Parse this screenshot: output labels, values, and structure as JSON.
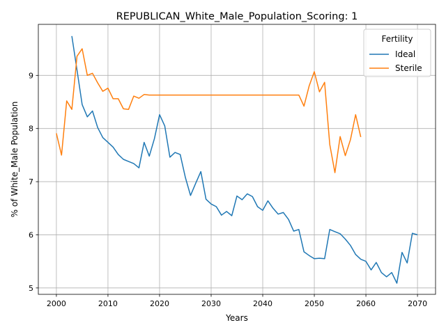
{
  "chart_data": {
    "type": "line",
    "title": "REPUBLICAN_White_Male_Population_Scoring: 1",
    "xlabel": "Years",
    "ylabel": "% of White_Male Population",
    "xlim": [
      1996.5,
      2073.5
    ],
    "ylim": [
      4.88,
      9.96
    ],
    "xticks": [
      2000,
      2010,
      2020,
      2030,
      2040,
      2050,
      2060,
      2070
    ],
    "yticks": [
      5,
      6,
      7,
      8,
      9
    ],
    "grid": true,
    "legend": {
      "title": "Fertility",
      "position": "top-right"
    },
    "series": [
      {
        "name": "Ideal",
        "color": "#1f77b4",
        "x": [
          2003,
          2004,
          2005,
          2006,
          2007,
          2008,
          2009,
          2010,
          2011,
          2012,
          2013,
          2014,
          2015,
          2016,
          2017,
          2018,
          2019,
          2020,
          2021,
          2022,
          2023,
          2024,
          2025,
          2026,
          2027,
          2028,
          2029,
          2030,
          2031,
          2032,
          2033,
          2034,
          2035,
          2036,
          2037,
          2038,
          2039,
          2040,
          2041,
          2042,
          2043,
          2044,
          2045,
          2046,
          2047,
          2048,
          2049,
          2050,
          2051,
          2052,
          2053,
          2054,
          2055,
          2056,
          2057,
          2058,
          2059,
          2060,
          2061,
          2062,
          2063,
          2064,
          2065,
          2066,
          2067,
          2068,
          2069,
          2070
        ],
        "y": [
          9.74,
          9.1,
          8.45,
          8.22,
          8.33,
          8.02,
          7.83,
          7.74,
          7.65,
          7.51,
          7.42,
          7.38,
          7.34,
          7.26,
          7.74,
          7.48,
          7.81,
          8.26,
          8.05,
          7.46,
          7.55,
          7.51,
          7.08,
          6.74,
          6.97,
          7.19,
          6.67,
          6.58,
          6.53,
          6.37,
          6.44,
          6.36,
          6.73,
          6.66,
          6.77,
          6.72,
          6.53,
          6.46,
          6.64,
          6.5,
          6.39,
          6.42,
          6.29,
          6.07,
          6.1,
          5.68,
          5.61,
          5.55,
          5.56,
          5.55,
          6.1,
          6.06,
          6.02,
          5.92,
          5.8,
          5.63,
          5.54,
          5.5,
          5.34,
          5.48,
          5.29,
          5.21,
          5.29,
          5.09,
          5.67,
          5.47,
          6.03,
          6.0
        ]
      },
      {
        "name": "Sterile",
        "color": "#ff7f0e",
        "x": [
          2000,
          2001,
          2002,
          2003,
          2004,
          2005,
          2006,
          2007,
          2008,
          2009,
          2010,
          2011,
          2012,
          2013,
          2014,
          2015,
          2016,
          2017,
          2018,
          2019,
          2020,
          2021,
          2022,
          2023,
          2024,
          2025,
          2026,
          2027,
          2028,
          2029,
          2030,
          2031,
          2032,
          2033,
          2034,
          2035,
          2036,
          2037,
          2038,
          2039,
          2040,
          2041,
          2042,
          2043,
          2044,
          2045,
          2046,
          2047,
          2048,
          2049,
          2050,
          2051,
          2052,
          2053,
          2054,
          2055,
          2056,
          2057,
          2058,
          2059
        ],
        "y": [
          7.91,
          7.5,
          8.52,
          8.36,
          9.36,
          9.5,
          9.0,
          9.04,
          8.86,
          8.7,
          8.76,
          8.56,
          8.56,
          8.37,
          8.36,
          8.61,
          8.57,
          8.64,
          8.63,
          8.63,
          8.63,
          8.63,
          8.63,
          8.63,
          8.63,
          8.63,
          8.63,
          8.63,
          8.63,
          8.63,
          8.63,
          8.63,
          8.63,
          8.63,
          8.63,
          8.63,
          8.63,
          8.63,
          8.63,
          8.63,
          8.63,
          8.63,
          8.63,
          8.63,
          8.63,
          8.63,
          8.63,
          8.63,
          8.42,
          8.8,
          9.07,
          8.69,
          8.87,
          7.7,
          7.17,
          7.85,
          7.49,
          7.79,
          8.26,
          7.84
        ]
      }
    ]
  }
}
